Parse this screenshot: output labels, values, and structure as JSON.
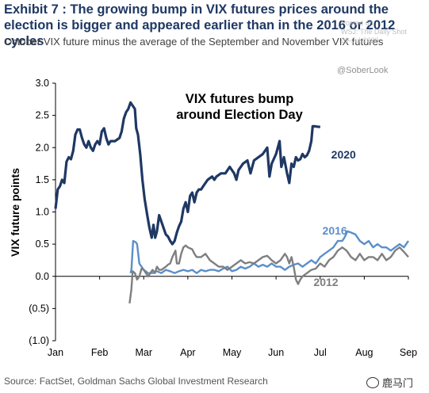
{
  "title": "Exhibit 7 : The growing bump in VIX futures prices around the election is bigger and appeared earlier than in the 2016 or 2012 cycles",
  "subtitle": "October VIX future minus the average of the September and November VIX futures",
  "watermark": {
    "lines": [
      "Posted on",
      "WSJ: The Daily Shot",
      "09-Jul-2020"
    ],
    "handle": "@SoberLook"
  },
  "source": "Source: FactSet, Goldman Sachs Global Investment Research",
  "brand": "鹿马门",
  "brand_icon": "wechat-icon",
  "chart_data": {
    "type": "line",
    "title": "VIX futures bump\naround Election Day",
    "ylabel": "VIX future points",
    "xlabel": "",
    "ylim": [
      -1.0,
      3.0
    ],
    "yticks": [
      3.0,
      2.5,
      2.0,
      1.5,
      1.0,
      0.5,
      0.0,
      -0.5,
      -1.0
    ],
    "ytick_labels": [
      "3.0",
      "2.5",
      "2.0",
      "1.5",
      "1.0",
      "0.5",
      "0.0",
      "(0.5)",
      "(1.0)"
    ],
    "xlim": [
      0,
      8
    ],
    "xticks": [
      0,
      1,
      2,
      3,
      4,
      5,
      6,
      7,
      8
    ],
    "xtick_labels": [
      "Jan",
      "Feb",
      "Mar",
      "Apr",
      "May",
      "Jun",
      "Jul",
      "Aug",
      "Sep"
    ],
    "grid": false,
    "legend": "inline labels",
    "series": [
      {
        "name": "2020",
        "color": "#1f3864",
        "width": 3.2,
        "label_at": [
          6.25,
          1.83
        ],
        "points": [
          [
            0,
            1.05
          ],
          [
            0.05,
            1.35
          ],
          [
            0.1,
            1.4
          ],
          [
            0.15,
            1.5
          ],
          [
            0.2,
            1.45
          ],
          [
            0.25,
            1.78
          ],
          [
            0.3,
            1.85
          ],
          [
            0.35,
            1.82
          ],
          [
            0.4,
            1.95
          ],
          [
            0.45,
            2.2
          ],
          [
            0.5,
            2.28
          ],
          [
            0.55,
            2.28
          ],
          [
            0.6,
            2.15
          ],
          [
            0.65,
            2.05
          ],
          [
            0.7,
            2.0
          ],
          [
            0.75,
            2.1
          ],
          [
            0.8,
            2.0
          ],
          [
            0.85,
            1.95
          ],
          [
            0.9,
            2.05
          ],
          [
            0.95,
            2.1
          ],
          [
            1.0,
            2.05
          ],
          [
            1.05,
            2.25
          ],
          [
            1.1,
            2.3
          ],
          [
            1.15,
            2.15
          ],
          [
            1.2,
            2.05
          ],
          [
            1.25,
            2.1
          ],
          [
            1.35,
            2.1
          ],
          [
            1.45,
            2.15
          ],
          [
            1.5,
            2.25
          ],
          [
            1.55,
            2.45
          ],
          [
            1.6,
            2.55
          ],
          [
            1.65,
            2.6
          ],
          [
            1.7,
            2.7
          ],
          [
            1.75,
            2.65
          ],
          [
            1.8,
            2.6
          ],
          [
            1.83,
            2.3
          ],
          [
            1.87,
            2.2
          ],
          [
            1.92,
            1.9
          ],
          [
            1.97,
            1.5
          ],
          [
            2.02,
            1.2
          ],
          [
            2.08,
            0.95
          ],
          [
            2.13,
            0.75
          ],
          [
            2.18,
            0.6
          ],
          [
            2.22,
            0.8
          ],
          [
            2.26,
            0.6
          ],
          [
            2.3,
            0.7
          ],
          [
            2.35,
            0.95
          ],
          [
            2.4,
            0.85
          ],
          [
            2.45,
            0.75
          ],
          [
            2.5,
            0.65
          ],
          [
            2.55,
            0.62
          ],
          [
            2.6,
            0.55
          ],
          [
            2.65,
            0.5
          ],
          [
            2.7,
            0.55
          ],
          [
            2.75,
            0.68
          ],
          [
            2.8,
            0.78
          ],
          [
            2.85,
            0.85
          ],
          [
            2.9,
            1.05
          ],
          [
            2.95,
            1.15
          ],
          [
            3.0,
            1.0
          ],
          [
            3.05,
            1.25
          ],
          [
            3.1,
            1.3
          ],
          [
            3.15,
            1.15
          ],
          [
            3.2,
            1.3
          ],
          [
            3.25,
            1.35
          ],
          [
            3.3,
            1.35
          ],
          [
            3.35,
            1.4
          ],
          [
            3.45,
            1.5
          ],
          [
            3.55,
            1.55
          ],
          [
            3.6,
            1.5
          ],
          [
            3.65,
            1.55
          ],
          [
            3.75,
            1.6
          ],
          [
            3.85,
            1.6
          ],
          [
            3.95,
            1.7
          ],
          [
            4.05,
            1.6
          ],
          [
            4.1,
            1.5
          ],
          [
            4.15,
            1.65
          ],
          [
            4.25,
            1.75
          ],
          [
            4.35,
            1.8
          ],
          [
            4.42,
            1.6
          ],
          [
            4.5,
            1.8
          ],
          [
            4.6,
            1.85
          ],
          [
            4.7,
            1.9
          ],
          [
            4.8,
            2.0
          ],
          [
            4.85,
            1.55
          ],
          [
            4.9,
            1.75
          ],
          [
            5.0,
            1.9
          ],
          [
            5.08,
            2.1
          ],
          [
            5.12,
            1.7
          ],
          [
            5.18,
            1.85
          ],
          [
            5.25,
            1.6
          ],
          [
            5.3,
            1.45
          ],
          [
            5.35,
            1.75
          ],
          [
            5.4,
            1.7
          ],
          [
            5.45,
            1.85
          ],
          [
            5.5,
            1.8
          ],
          [
            5.55,
            1.82
          ],
          [
            5.6,
            1.9
          ],
          [
            5.65,
            1.85
          ],
          [
            5.7,
            1.88
          ],
          [
            5.75,
            1.95
          ],
          [
            5.8,
            2.1
          ],
          [
            5.83,
            2.33
          ],
          [
            5.88,
            2.33
          ],
          [
            6.0,
            2.32
          ]
        ]
      },
      {
        "name": "2016",
        "color": "#5b8fc9",
        "width": 2.4,
        "label_at": [
          6.05,
          0.65
        ],
        "points": [
          [
            1.7,
            0.05
          ],
          [
            1.72,
            0.1
          ],
          [
            1.76,
            0.55
          ],
          [
            1.82,
            0.53
          ],
          [
            1.85,
            0.5
          ],
          [
            1.9,
            0.2
          ],
          [
            1.95,
            0.15
          ],
          [
            2.0,
            0.1
          ],
          [
            2.1,
            0.05
          ],
          [
            2.2,
            0.05
          ],
          [
            2.3,
            0.08
          ],
          [
            2.4,
            0.05
          ],
          [
            2.5,
            0.1
          ],
          [
            2.6,
            0.08
          ],
          [
            2.7,
            0.05
          ],
          [
            2.8,
            0.08
          ],
          [
            2.9,
            0.1
          ],
          [
            3.0,
            0.08
          ],
          [
            3.1,
            0.1
          ],
          [
            3.2,
            0.05
          ],
          [
            3.3,
            0.1
          ],
          [
            3.4,
            0.08
          ],
          [
            3.5,
            0.1
          ],
          [
            3.6,
            0.1
          ],
          [
            3.7,
            0.08
          ],
          [
            3.8,
            0.12
          ],
          [
            3.9,
            0.15
          ],
          [
            4.0,
            0.08
          ],
          [
            4.1,
            0.1
          ],
          [
            4.2,
            0.15
          ],
          [
            4.3,
            0.12
          ],
          [
            4.4,
            0.15
          ],
          [
            4.5,
            0.2
          ],
          [
            4.6,
            0.15
          ],
          [
            4.7,
            0.18
          ],
          [
            4.8,
            0.15
          ],
          [
            4.9,
            0.2
          ],
          [
            5.0,
            0.15
          ],
          [
            5.1,
            0.15
          ],
          [
            5.2,
            0.1
          ],
          [
            5.3,
            0.15
          ],
          [
            5.4,
            0.18
          ],
          [
            5.5,
            0.2
          ],
          [
            5.6,
            0.15
          ],
          [
            5.7,
            0.2
          ],
          [
            5.8,
            0.25
          ],
          [
            5.9,
            0.2
          ],
          [
            6.0,
            0.3
          ],
          [
            6.1,
            0.35
          ],
          [
            6.2,
            0.4
          ],
          [
            6.3,
            0.45
          ],
          [
            6.4,
            0.55
          ],
          [
            6.5,
            0.55
          ],
          [
            6.55,
            0.6
          ],
          [
            6.62,
            0.7
          ],
          [
            6.7,
            0.68
          ],
          [
            6.8,
            0.65
          ],
          [
            6.9,
            0.55
          ],
          [
            7.0,
            0.5
          ],
          [
            7.1,
            0.55
          ],
          [
            7.2,
            0.45
          ],
          [
            7.3,
            0.5
          ],
          [
            7.4,
            0.45
          ],
          [
            7.5,
            0.45
          ],
          [
            7.6,
            0.4
          ],
          [
            7.7,
            0.45
          ],
          [
            7.8,
            0.5
          ],
          [
            7.9,
            0.45
          ],
          [
            8.0,
            0.55
          ]
        ]
      },
      {
        "name": "2012",
        "color": "#7f7f7f",
        "width": 2.4,
        "label_at": [
          5.85,
          -0.15
        ],
        "points": [
          [
            1.68,
            -0.42
          ],
          [
            1.72,
            -0.2
          ],
          [
            1.75,
            0.08
          ],
          [
            1.8,
            0.05
          ],
          [
            1.85,
            -0.05
          ],
          [
            1.9,
            0.0
          ],
          [
            1.95,
            0.12
          ],
          [
            2.0,
            0.1
          ],
          [
            2.05,
            0.05
          ],
          [
            2.1,
            0.0
          ],
          [
            2.15,
            0.05
          ],
          [
            2.2,
            0.1
          ],
          [
            2.25,
            0.05
          ],
          [
            2.3,
            0.15
          ],
          [
            2.35,
            0.1
          ],
          [
            2.4,
            0.1
          ],
          [
            2.5,
            0.15
          ],
          [
            2.55,
            0.18
          ],
          [
            2.6,
            0.2
          ],
          [
            2.65,
            0.3
          ],
          [
            2.72,
            0.4
          ],
          [
            2.75,
            0.2
          ],
          [
            2.8,
            0.2
          ],
          [
            2.85,
            0.35
          ],
          [
            2.9,
            0.45
          ],
          [
            2.95,
            0.48
          ],
          [
            3.0,
            0.45
          ],
          [
            3.1,
            0.42
          ],
          [
            3.15,
            0.35
          ],
          [
            3.2,
            0.3
          ],
          [
            3.3,
            0.3
          ],
          [
            3.4,
            0.35
          ],
          [
            3.5,
            0.25
          ],
          [
            3.6,
            0.2
          ],
          [
            3.7,
            0.15
          ],
          [
            3.8,
            0.15
          ],
          [
            3.9,
            0.1
          ],
          [
            4.0,
            0.15
          ],
          [
            4.1,
            0.2
          ],
          [
            4.2,
            0.25
          ],
          [
            4.3,
            0.2
          ],
          [
            4.4,
            0.22
          ],
          [
            4.5,
            0.2
          ],
          [
            4.6,
            0.25
          ],
          [
            4.7,
            0.3
          ],
          [
            4.8,
            0.32
          ],
          [
            4.9,
            0.25
          ],
          [
            5.0,
            0.2
          ],
          [
            5.1,
            0.25
          ],
          [
            5.2,
            0.35
          ],
          [
            5.25,
            0.3
          ],
          [
            5.3,
            0.2
          ],
          [
            5.35,
            0.3
          ],
          [
            5.4,
            0.15
          ],
          [
            5.45,
            -0.05
          ],
          [
            5.5,
            -0.12
          ],
          [
            5.55,
            -0.05
          ],
          [
            5.6,
            0.0
          ],
          [
            5.7,
            0.05
          ],
          [
            5.8,
            0.1
          ],
          [
            5.9,
            0.12
          ],
          [
            6.0,
            0.2
          ],
          [
            6.1,
            0.15
          ],
          [
            6.2,
            0.25
          ],
          [
            6.3,
            0.3
          ],
          [
            6.4,
            0.4
          ],
          [
            6.5,
            0.45
          ],
          [
            6.6,
            0.4
          ],
          [
            6.7,
            0.3
          ],
          [
            6.8,
            0.25
          ],
          [
            6.9,
            0.35
          ],
          [
            7.0,
            0.25
          ],
          [
            7.1,
            0.3
          ],
          [
            7.2,
            0.3
          ],
          [
            7.3,
            0.25
          ],
          [
            7.4,
            0.35
          ],
          [
            7.5,
            0.25
          ],
          [
            7.6,
            0.3
          ],
          [
            7.7,
            0.4
          ],
          [
            7.8,
            0.45
          ],
          [
            7.9,
            0.38
          ],
          [
            8.0,
            0.3
          ]
        ]
      }
    ]
  }
}
